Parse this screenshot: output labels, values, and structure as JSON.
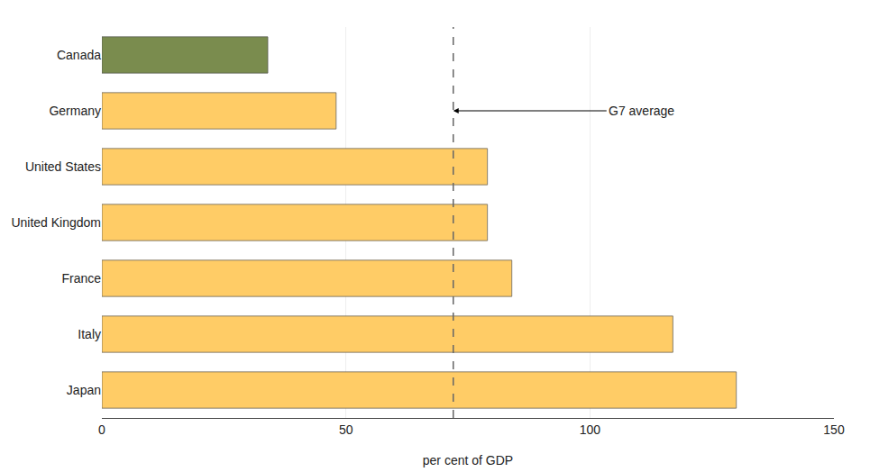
{
  "chart_data": {
    "type": "bar",
    "orientation": "horizontal",
    "categories": [
      "Japan",
      "Italy",
      "France",
      "United Kingdom",
      "United States",
      "Germany",
      "Canada"
    ],
    "values": [
      130,
      117,
      84,
      79,
      79,
      48,
      34
    ],
    "colors": [
      "#FFCC66",
      "#FFCC66",
      "#FFCC66",
      "#FFCC66",
      "#FFCC66",
      "#FFCC66",
      "#7A8C4E"
    ],
    "xlabel": "per cent of GDP",
    "xlim": [
      0,
      150
    ],
    "xticks": [
      0,
      50,
      100,
      150
    ],
    "grid": true,
    "annotations": [
      {
        "text": "G7 average",
        "x": 72,
        "y": "Germany",
        "line_style": "dashed"
      }
    ]
  }
}
